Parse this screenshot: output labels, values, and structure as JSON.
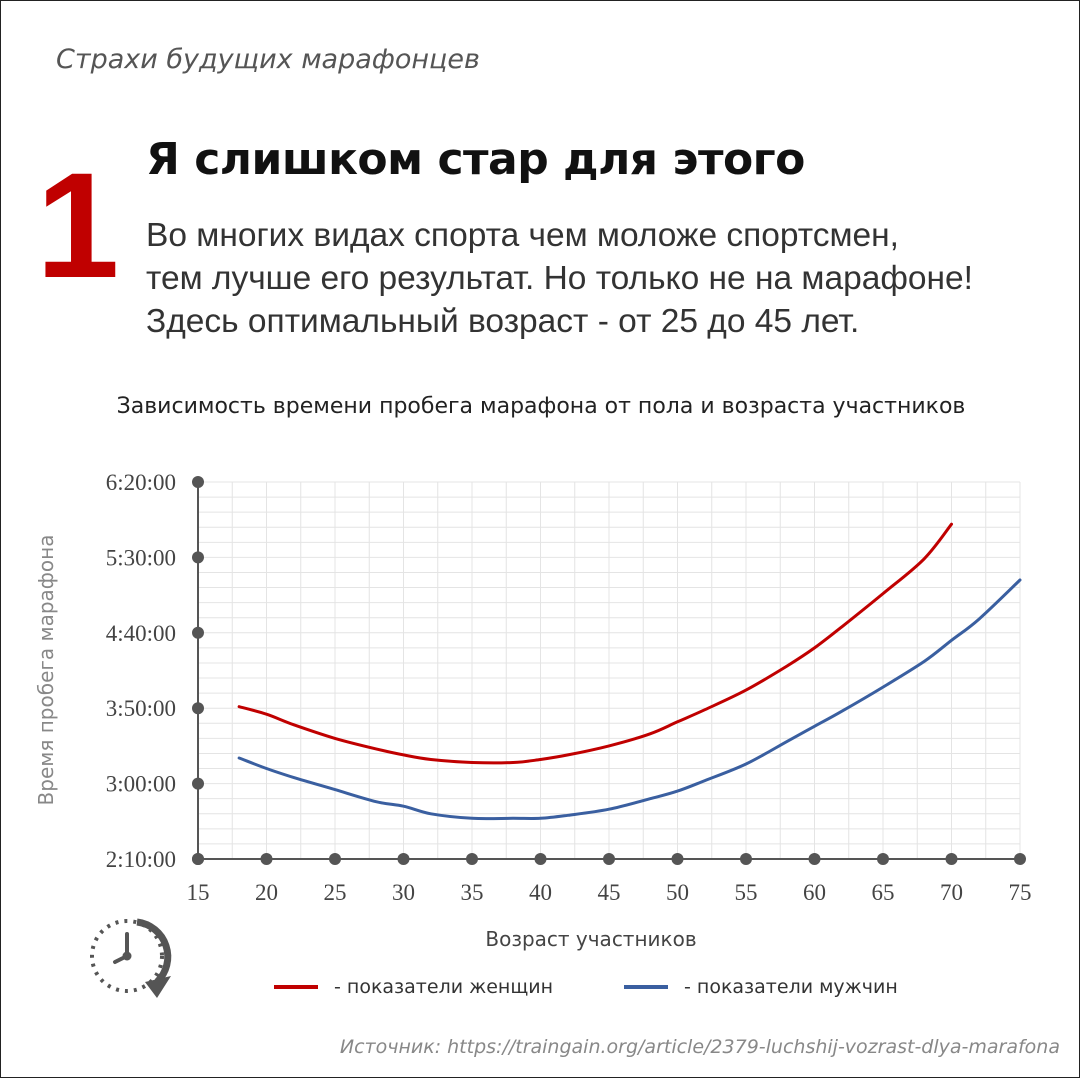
{
  "header": {
    "kicker": "Страхи будущих марафонцев",
    "number": "1",
    "headline": "Я слишком стар для этого",
    "lead_lines": [
      "Во многих видах спорта чем моложе спортсмен,",
      "тем лучше его результат. Но только не на марафоне!",
      "Здесь оптимальный возраст - от 25 до 45 лет."
    ]
  },
  "icons": {
    "clock": "clock-arrow-icon"
  },
  "colors": {
    "women": "#c00000",
    "men": "#3a5fa0",
    "accent": "#c00000",
    "axis": "#555555",
    "grid": "#e4e4e4"
  },
  "chart_data": {
    "type": "line",
    "title": "Зависимость времени пробега марафона от пола и возраста участников",
    "xlabel": "Возраст участников",
    "ylabel": "Время пробега марафона",
    "xlim": [
      15,
      75
    ],
    "ylim_minutes": [
      130,
      380
    ],
    "x_ticks": [
      15,
      20,
      25,
      30,
      35,
      40,
      45,
      50,
      55,
      60,
      65,
      70,
      75
    ],
    "y_ticks": [
      {
        "label": "2:10:00",
        "minutes": 130
      },
      {
        "label": "3:00:00",
        "minutes": 180
      },
      {
        "label": "3:50:00",
        "minutes": 230
      },
      {
        "label": "4:40:00",
        "minutes": 280
      },
      {
        "label": "5:30:00",
        "minutes": 330
      },
      {
        "label": "6:20:00",
        "minutes": 380
      }
    ],
    "grid": true,
    "legend_position": "bottom",
    "series": [
      {
        "name": "- показатели женщин",
        "color": "#c00000",
        "x": [
          18,
          20,
          22,
          25,
          28,
          30,
          32,
          35,
          38,
          40,
          42,
          45,
          48,
          50,
          52,
          55,
          58,
          60,
          62,
          65,
          68,
          70
        ],
        "y": [
          231,
          226,
          219,
          210,
          203,
          199,
          196,
          194,
          194,
          196,
          199,
          205,
          213,
          221,
          229,
          242,
          258,
          270,
          284,
          306,
          329,
          352
        ]
      },
      {
        "name": "- показатели мужчин",
        "color": "#3a5fa0",
        "x": [
          18,
          20,
          22,
          25,
          28,
          30,
          32,
          35,
          38,
          40,
          42,
          45,
          48,
          50,
          52,
          55,
          58,
          60,
          62,
          65,
          68,
          70,
          72,
          75
        ],
        "y": [
          197,
          190,
          184,
          176,
          168,
          165,
          160,
          157,
          157,
          157,
          159,
          163,
          170,
          175,
          182,
          193,
          208,
          218,
          228,
          244,
          261,
          275,
          289,
          315
        ]
      }
    ]
  },
  "source": "Источник: https://traingain.org/article/2379-luchshij-vozrast-dlya-marafona"
}
